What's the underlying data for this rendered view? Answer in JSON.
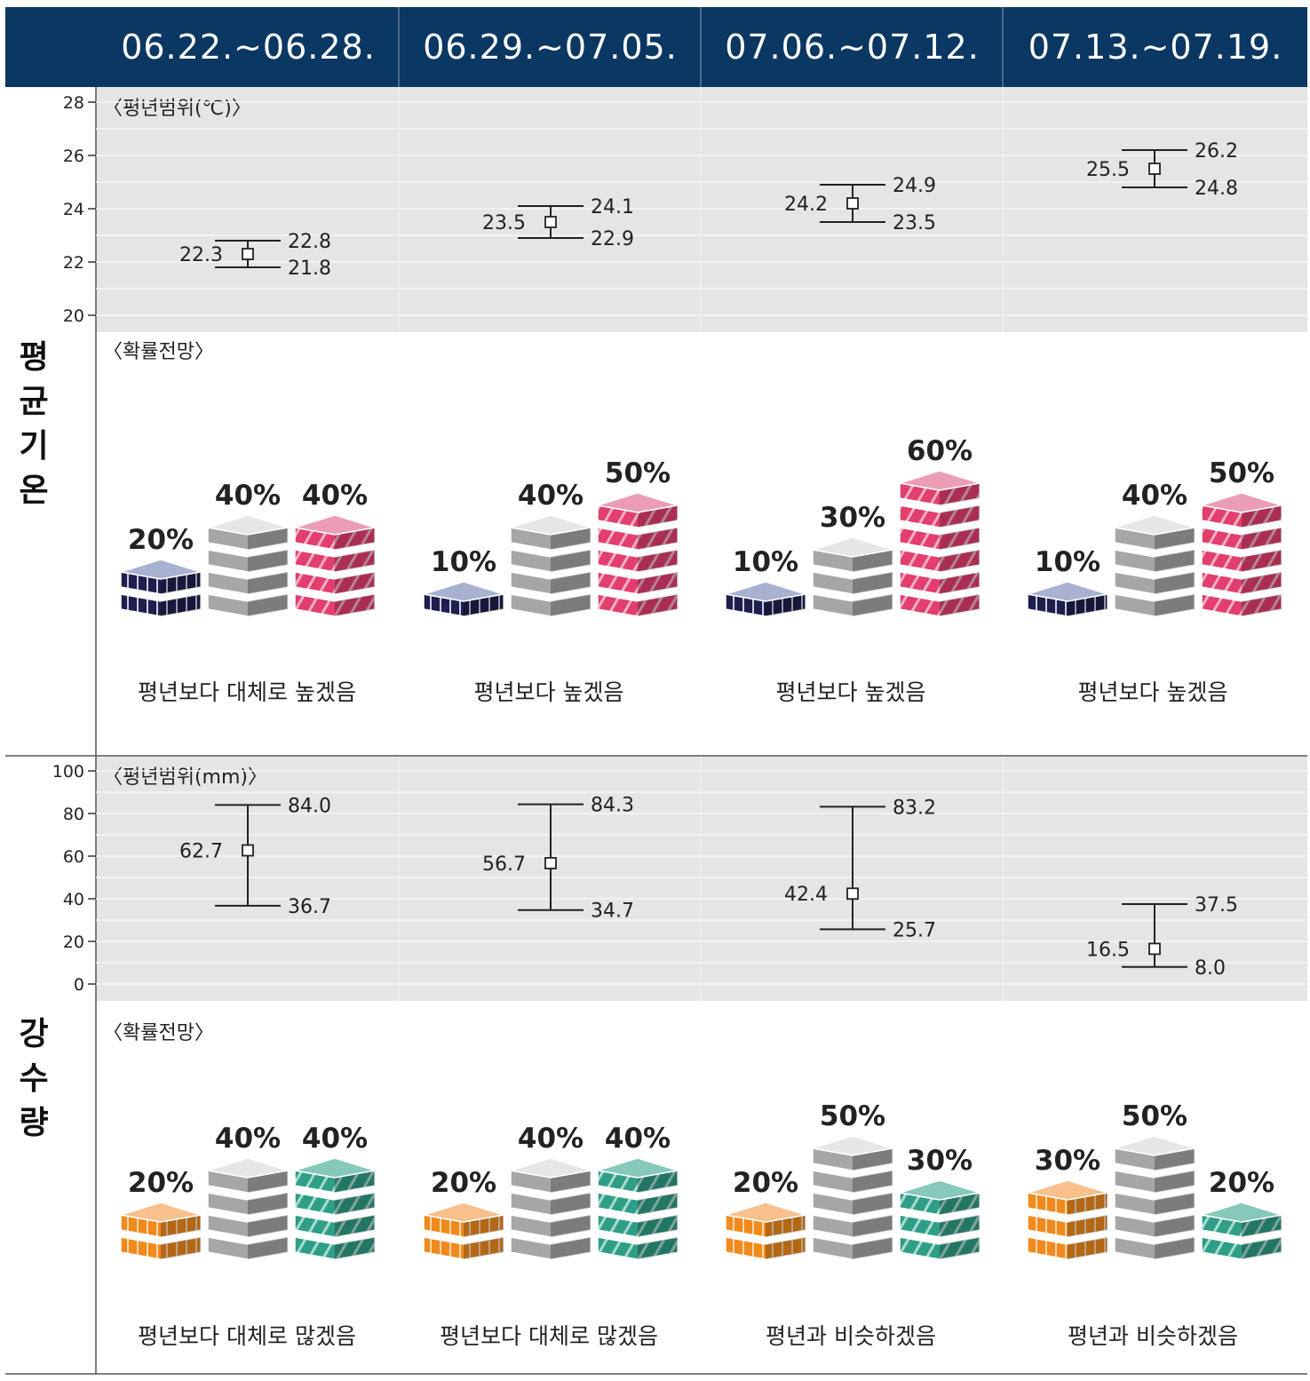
{
  "periods": [
    "06.22.~06.28.",
    "06.29.~07.05.",
    "07.06.~07.12.",
    "07.13.~07.19."
  ],
  "sections": {
    "temp_title": "평균기온",
    "precip_title": "강수량",
    "temp_range_label": "〈평년범위(℃)〉",
    "precip_range_label": "〈평년범위(mm)〉",
    "prob_label": "〈확률전망〉"
  },
  "colors": {
    "header_bg": "#0b3763",
    "below_temp": "#1e1f4d",
    "below_temp_top": "#a9b1d1",
    "normal": "#a6a6a6",
    "normal_top": "#e6e6e6",
    "above_temp": "#e23e6e",
    "above_temp_top": "#eb9db6",
    "below_precip": "#f08a1c",
    "below_precip_top": "#f7c08c",
    "above_precip": "#2f9e86",
    "above_precip_top": "#86c8b9"
  },
  "temp_verdicts": [
    "평년보다 대체로 높겠음",
    "평년보다 높겠음",
    "평년보다 높겠음",
    "평년보다 높겠음"
  ],
  "precip_verdicts": [
    "평년보다 대체로 많겠음",
    "평년보다 대체로 많겠음",
    "평년과 비슷하겠음",
    "평년과 비슷하겠음"
  ],
  "chart_data": [
    {
      "type": "errorbar",
      "title": "평균기온 평년범위",
      "ylabel": "℃",
      "ylim": [
        20,
        28
      ],
      "yticks": [
        20,
        22,
        24,
        26,
        28
      ],
      "categories": [
        "06.22.~06.28.",
        "06.29.~07.05.",
        "07.06.~07.12.",
        "07.13.~07.19."
      ],
      "series": [
        {
          "name": "mean",
          "values": [
            22.3,
            23.5,
            24.2,
            25.5
          ]
        },
        {
          "name": "upper",
          "values": [
            22.8,
            24.1,
            24.9,
            26.2
          ]
        },
        {
          "name": "lower",
          "values": [
            21.8,
            22.9,
            23.5,
            24.8
          ]
        }
      ]
    },
    {
      "type": "bar",
      "title": "평균기온 확률전망",
      "ylabel": "%",
      "categories": [
        "06.22.~06.28.",
        "06.29.~07.05.",
        "07.06.~07.12.",
        "07.13.~07.19."
      ],
      "series": [
        {
          "name": "below",
          "values": [
            20,
            10,
            10,
            10
          ]
        },
        {
          "name": "normal",
          "values": [
            40,
            40,
            30,
            40
          ]
        },
        {
          "name": "above",
          "values": [
            40,
            50,
            60,
            50
          ]
        }
      ]
    },
    {
      "type": "errorbar",
      "title": "강수량 평년범위",
      "ylabel": "mm",
      "ylim": [
        0,
        100
      ],
      "yticks": [
        0,
        20,
        40,
        60,
        80,
        100
      ],
      "categories": [
        "06.22.~06.28.",
        "06.29.~07.05.",
        "07.06.~07.12.",
        "07.13.~07.19."
      ],
      "series": [
        {
          "name": "mean",
          "values": [
            62.7,
            56.7,
            42.4,
            16.5
          ]
        },
        {
          "name": "upper",
          "values": [
            84.0,
            84.3,
            83.2,
            37.5
          ]
        },
        {
          "name": "lower",
          "values": [
            36.7,
            34.7,
            25.7,
            8.0
          ]
        }
      ]
    },
    {
      "type": "bar",
      "title": "강수량 확률전망",
      "ylabel": "%",
      "categories": [
        "06.22.~06.28.",
        "06.29.~07.05.",
        "07.06.~07.12.",
        "07.13.~07.19."
      ],
      "series": [
        {
          "name": "below",
          "values": [
            20,
            20,
            20,
            30
          ]
        },
        {
          "name": "normal",
          "values": [
            40,
            40,
            50,
            50
          ]
        },
        {
          "name": "above",
          "values": [
            40,
            40,
            30,
            20
          ]
        }
      ]
    }
  ]
}
